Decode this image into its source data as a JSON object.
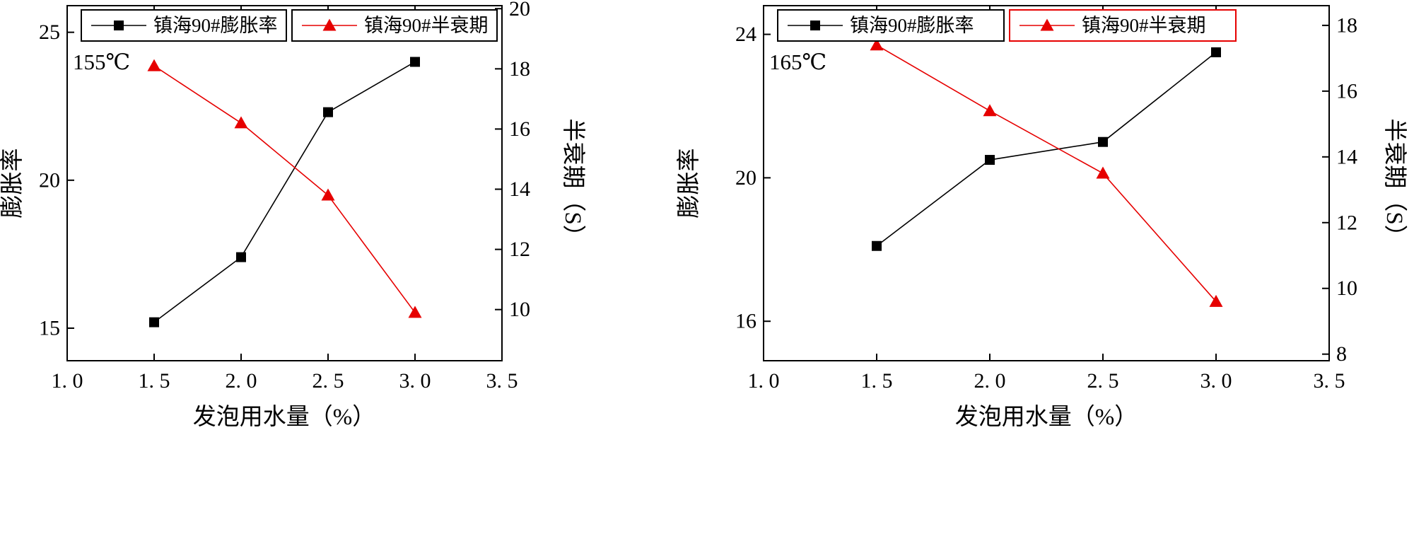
{
  "figure": {
    "background": "#ffffff",
    "axis_color": "#000000"
  },
  "chart_data": [
    {
      "type": "line",
      "annotation": "155℃",
      "xlabel": "发泡用水量（%）",
      "xlim": [
        1.0,
        3.5
      ],
      "x_ticks": [
        1.0,
        1.5,
        2.0,
        2.5,
        3.0,
        3.5
      ],
      "x_tick_labels": [
        "1. 0",
        "1. 5",
        "2. 0",
        "2. 5",
        "3. 0",
        "3. 5"
      ],
      "x": [
        1.5,
        2.0,
        2.5,
        3.0
      ],
      "y_left": {
        "label": "膨胀率",
        "lim": [
          13.9,
          25.9
        ],
        "ticks": [
          15,
          20,
          25
        ]
      },
      "y_right": {
        "label": "半衰期（S）",
        "lim": [
          8.3,
          20.1
        ],
        "ticks": [
          10,
          12,
          14,
          16,
          18,
          20
        ]
      },
      "grid": false,
      "legend_position": "top",
      "series": [
        {
          "name": "镇海90#膨胀率",
          "axis": "left",
          "marker": "square",
          "color": "#000000",
          "legend_border": "#000000",
          "values": [
            15.2,
            17.4,
            22.3,
            24.0
          ]
        },
        {
          "name": "镇海90#半衰期",
          "axis": "right",
          "marker": "triangle",
          "color": "#e60000",
          "legend_border": "#000000",
          "values": [
            18.1,
            16.2,
            13.8,
            9.9
          ]
        }
      ]
    },
    {
      "type": "line",
      "annotation": "165℃",
      "xlabel": "发泡用水量（%）",
      "xlim": [
        1.0,
        3.5
      ],
      "x_ticks": [
        1.0,
        1.5,
        2.0,
        2.5,
        3.0,
        3.5
      ],
      "x_tick_labels": [
        "1. 0",
        "1. 5",
        "2. 0",
        "2. 5",
        "3. 0",
        "3. 5"
      ],
      "x": [
        1.5,
        2.0,
        2.5,
        3.0
      ],
      "y_left": {
        "label": "膨胀率",
        "lim": [
          14.9,
          24.8
        ],
        "ticks": [
          16,
          20,
          24
        ]
      },
      "y_right": {
        "label": "半衰期（S）",
        "lim": [
          7.8,
          18.6
        ],
        "ticks": [
          8,
          10,
          12,
          14,
          16,
          18
        ]
      },
      "grid": false,
      "legend_position": "top",
      "series": [
        {
          "name": "镇海90#膨胀率",
          "axis": "left",
          "marker": "square",
          "color": "#000000",
          "legend_border": "#000000",
          "values": [
            18.1,
            20.5,
            21.0,
            23.5
          ]
        },
        {
          "name": "镇海90#半衰期",
          "axis": "right",
          "marker": "triangle",
          "color": "#e60000",
          "legend_border": "#e60000",
          "values": [
            17.4,
            15.4,
            13.5,
            9.6
          ]
        }
      ]
    }
  ]
}
